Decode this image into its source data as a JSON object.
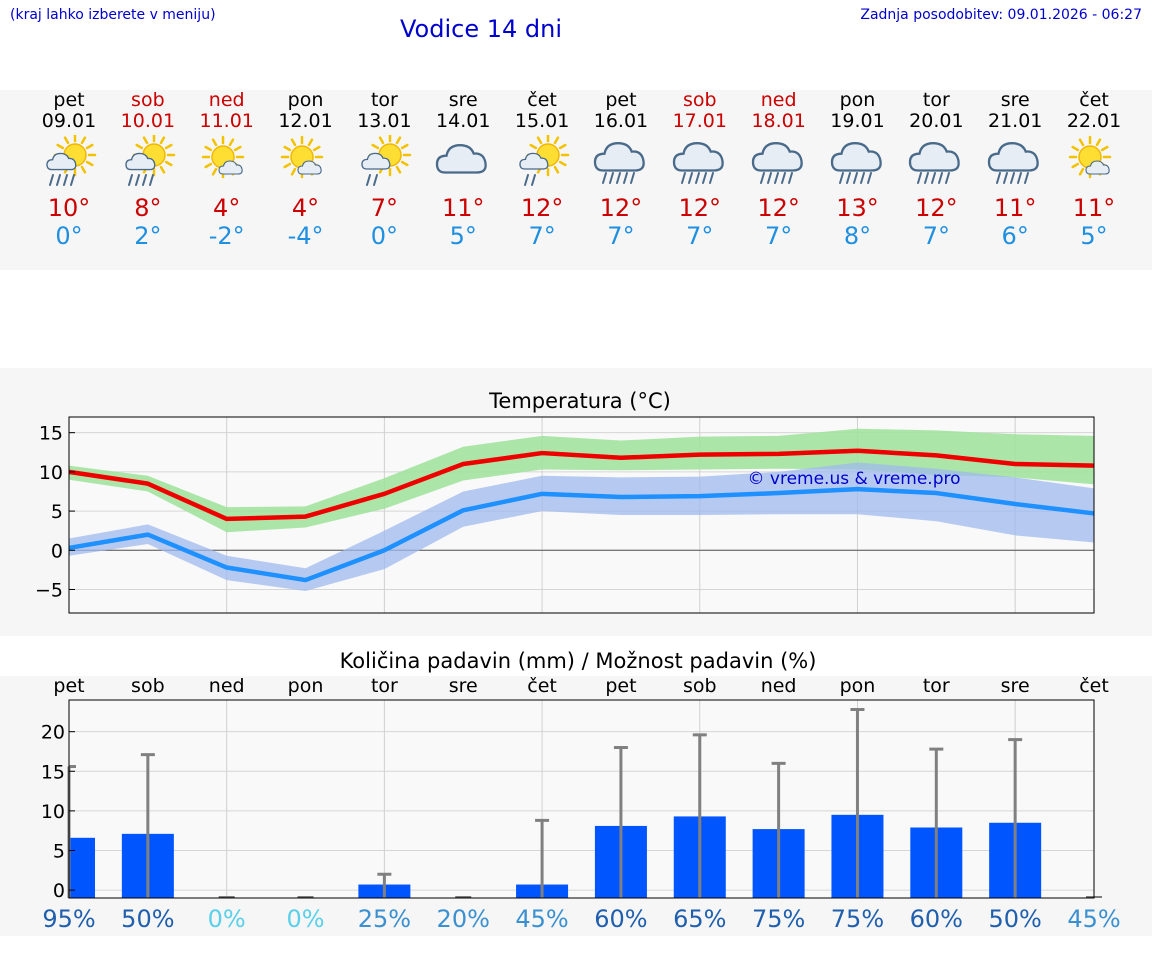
{
  "header": {
    "hint": "(kraj lahko izberete v meniju)",
    "title": "Vodice 14 dni",
    "updated": "Zadnja posodobitev: 09.01.2026 - 06:27"
  },
  "colors": {
    "max": "#cc0000",
    "min": "#1f8fe0",
    "bar": "#0055ff",
    "err": "#808080",
    "band_max": "#9ee39a",
    "band_min": "#9fb9ee"
  },
  "days": [
    {
      "name": "pet",
      "date": "09.01",
      "weekend": false,
      "icon": "partly-sunny-rain",
      "tmax": "10°",
      "tmin": "0°"
    },
    {
      "name": "sob",
      "date": "10.01",
      "weekend": true,
      "icon": "partly-sunny-rain",
      "tmax": "8°",
      "tmin": "2°"
    },
    {
      "name": "ned",
      "date": "11.01",
      "weekend": true,
      "icon": "sun-cloud",
      "tmax": "4°",
      "tmin": "-2°"
    },
    {
      "name": "pon",
      "date": "12.01",
      "weekend": false,
      "icon": "sun-cloud",
      "tmax": "4°",
      "tmin": "-4°"
    },
    {
      "name": "tor",
      "date": "13.01",
      "weekend": false,
      "icon": "partly-sunny-light-rain",
      "tmax": "7°",
      "tmin": "0°"
    },
    {
      "name": "sre",
      "date": "14.01",
      "weekend": false,
      "icon": "cloud",
      "tmax": "11°",
      "tmin": "5°"
    },
    {
      "name": "čet",
      "date": "15.01",
      "weekend": false,
      "icon": "partly-sunny-light-rain",
      "tmax": "12°",
      "tmin": "7°"
    },
    {
      "name": "pet",
      "date": "16.01",
      "weekend": false,
      "icon": "cloud-rain",
      "tmax": "12°",
      "tmin": "7°"
    },
    {
      "name": "sob",
      "date": "17.01",
      "weekend": true,
      "icon": "cloud-rain",
      "tmax": "12°",
      "tmin": "7°"
    },
    {
      "name": "ned",
      "date": "18.01",
      "weekend": true,
      "icon": "cloud-rain",
      "tmax": "12°",
      "tmin": "7°"
    },
    {
      "name": "pon",
      "date": "19.01",
      "weekend": false,
      "icon": "cloud-rain",
      "tmax": "13°",
      "tmin": "8°"
    },
    {
      "name": "tor",
      "date": "20.01",
      "weekend": false,
      "icon": "cloud-rain",
      "tmax": "12°",
      "tmin": "7°"
    },
    {
      "name": "sre",
      "date": "21.01",
      "weekend": false,
      "icon": "cloud-rain",
      "tmax": "11°",
      "tmin": "6°"
    },
    {
      "name": "čet",
      "date": "22.01",
      "weekend": false,
      "icon": "sun-cloud",
      "tmax": "11°",
      "tmin": "5°"
    }
  ],
  "chart_data": [
    {
      "type": "line",
      "title": "Temperatura (°C)",
      "watermark": "© vreme.us & vreme.pro",
      "ylim": [
        -8,
        17
      ],
      "yticks": [
        15,
        10,
        5,
        0,
        -5
      ],
      "ytick_labels": [
        "15",
        "10",
        "5",
        "0",
        "−5"
      ],
      "x": [
        0,
        1,
        2,
        3,
        4,
        5,
        6,
        7,
        8,
        9,
        10,
        11,
        12,
        13
      ],
      "series": [
        {
          "name": "max",
          "values": [
            10,
            8.5,
            4,
            4.3,
            7.2,
            11,
            12.4,
            11.8,
            12.2,
            12.3,
            12.7,
            12.1,
            11,
            10.8
          ],
          "band_low": [
            9,
            7.5,
            2.3,
            2.9,
            5.3,
            8.9,
            10.3,
            10.2,
            10.3,
            10.4,
            10.3,
            9.6,
            9.3,
            8.4
          ],
          "band_high": [
            10.8,
            9.5,
            5.5,
            5.6,
            9.2,
            13.2,
            14.6,
            14,
            14.5,
            14.6,
            15.5,
            15.3,
            14.8,
            14.6
          ]
        },
        {
          "name": "min",
          "values": [
            0.3,
            2,
            -2.2,
            -3.8,
            0,
            5.1,
            7.2,
            6.8,
            6.9,
            7.3,
            7.8,
            7.3,
            5.9,
            4.7
          ],
          "band_low": [
            -0.7,
            0.8,
            -3.8,
            -5.2,
            -2.4,
            3,
            5,
            4.5,
            4.5,
            4.6,
            4.6,
            3.7,
            1.9,
            1
          ],
          "band_high": [
            1.5,
            3.3,
            -0.7,
            -2.3,
            2.5,
            7.5,
            9.5,
            9.3,
            9.4,
            10,
            11.2,
            10.4,
            9.3,
            7.9
          ]
        }
      ]
    },
    {
      "type": "bar",
      "title": "Količina padavin (mm) / Možnost padavin (%)",
      "ylim": [
        -1,
        24
      ],
      "yticks": [
        20,
        15,
        10,
        5,
        0
      ],
      "categories": [
        "pet",
        "sob",
        "ned",
        "pon",
        "tor",
        "sre",
        "čet",
        "pet",
        "sob",
        "ned",
        "pon",
        "tor",
        "sre",
        "čet"
      ],
      "values": [
        6.6,
        7.1,
        0,
        0,
        0.7,
        0,
        0.7,
        8.1,
        9.3,
        7.7,
        9.5,
        7.9,
        8.5,
        0
      ],
      "error_high": [
        15.6,
        17.1,
        0,
        0,
        2,
        0,
        8.8,
        18,
        19.6,
        16,
        22.8,
        17.8,
        19,
        0
      ],
      "probability_labels": [
        "95%",
        "50%",
        "0%",
        "0%",
        "25%",
        "20%",
        "45%",
        "60%",
        "65%",
        "75%",
        "75%",
        "60%",
        "50%",
        "45%"
      ],
      "probability": [
        95,
        50,
        0,
        0,
        25,
        20,
        45,
        60,
        65,
        75,
        75,
        60,
        50,
        45
      ]
    }
  ]
}
